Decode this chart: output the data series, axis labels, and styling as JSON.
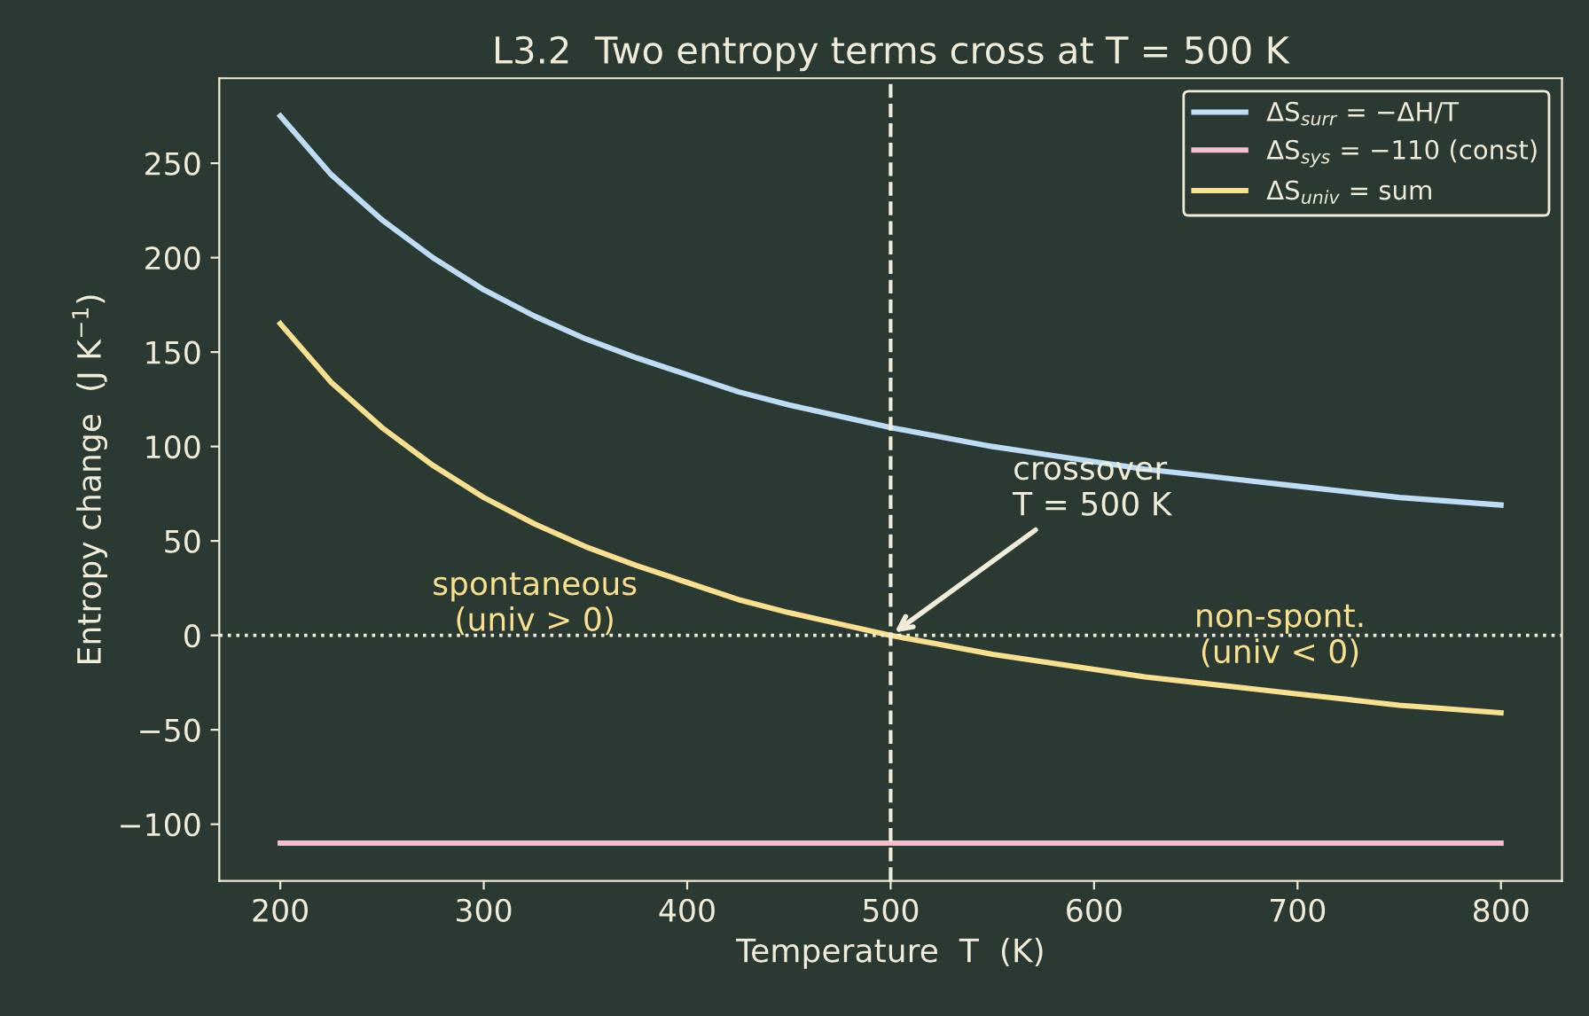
{
  "chart_data": {
    "type": "line",
    "title": "L3.2  Two entropy terms cross at T = 500 K",
    "xlabel": "Temperature  T  (K)",
    "ylabel": "Entropy change  (J K$^{−1}$)",
    "x": [
      200,
      225,
      250,
      275,
      300,
      325,
      350,
      375,
      400,
      425,
      450,
      475,
      500,
      525,
      550,
      575,
      600,
      625,
      650,
      675,
      700,
      725,
      750,
      775,
      800
    ],
    "series": [
      {
        "name": "ΔS$_{surr}$ = −ΔH/T",
        "color": "#bfdcf5",
        "values": [
          275,
          244,
          220,
          200,
          183,
          169,
          157,
          147,
          138,
          129,
          122,
          116,
          110,
          105,
          100,
          96,
          92,
          88,
          85,
          82,
          79,
          76,
          73,
          71,
          69
        ]
      },
      {
        "name": "ΔS$_{sys}$ = −110 (const)",
        "color": "#f5c0cb",
        "values": [
          -110,
          -110,
          -110,
          -110,
          -110,
          -110,
          -110,
          -110,
          -110,
          -110,
          -110,
          -110,
          -110,
          -110,
          -110,
          -110,
          -110,
          -110,
          -110,
          -110,
          -110,
          -110,
          -110,
          -110,
          -110
        ]
      },
      {
        "name": "ΔS$_{univ}$ = sum",
        "color": "#f9e08f",
        "values": [
          165,
          134,
          110,
          90,
          73,
          59,
          47,
          37,
          28,
          19,
          12,
          6,
          0,
          -5,
          -10,
          -14,
          -18,
          -22,
          -25,
          -28,
          -31,
          -34,
          -37,
          -39,
          -41
        ]
      }
    ],
    "xlim": [
      170,
      830
    ],
    "ylim": [
      -130,
      295
    ],
    "xticks": [
      200,
      300,
      400,
      500,
      600,
      700,
      800
    ],
    "yticks": [
      -100,
      -50,
      0,
      50,
      100,
      150,
      200,
      250
    ],
    "ref_lines": [
      {
        "axis": "x",
        "value": 500,
        "color": "#f0ecd8",
        "line_style": "dashed"
      },
      {
        "axis": "y",
        "value": 0,
        "color": "#f0ecd8",
        "line_style": "dotted"
      }
    ],
    "annotations": [
      "spontaneous\n(univ > 0)",
      "non-spont.\n(univ < 0)",
      {
        "text": "crossover\nT = 500 K",
        "x": 500,
        "y": 0
      }
    ],
    "grid": false,
    "legend": "top right",
    "marker": "none",
    "line_style": "solid"
  }
}
